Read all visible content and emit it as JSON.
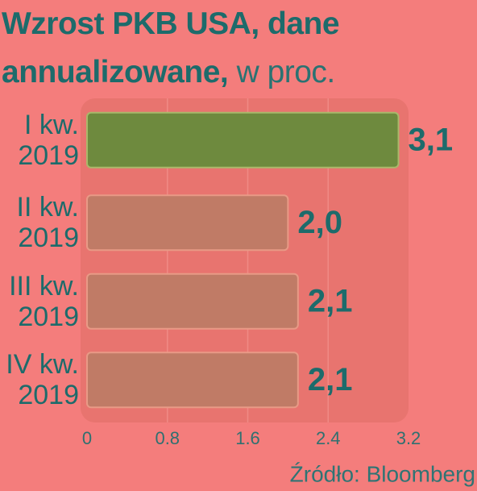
{
  "chart_data": {
    "type": "hbar",
    "title": "Wzrost PKB USA, dane annualizowane,",
    "subtitle": "w proc.",
    "source": "Źródło: Bloomberg",
    "categories": [
      "I kw. 2019",
      "II kw. 2019",
      "III kw. 2019",
      "IV kw. 2019"
    ],
    "values": [
      3.1,
      2.0,
      2.1,
      2.1
    ],
    "value_labels": [
      "3,1",
      "2,0",
      "2,1",
      "2,1"
    ],
    "colors": [
      "#6e8a3e",
      "#c07b66",
      "#c07b66",
      "#c07b66"
    ],
    "xlim": [
      0,
      3.2
    ],
    "xticks": [
      0,
      0.8,
      1.6,
      2.4,
      3.2
    ],
    "grid": true
  }
}
